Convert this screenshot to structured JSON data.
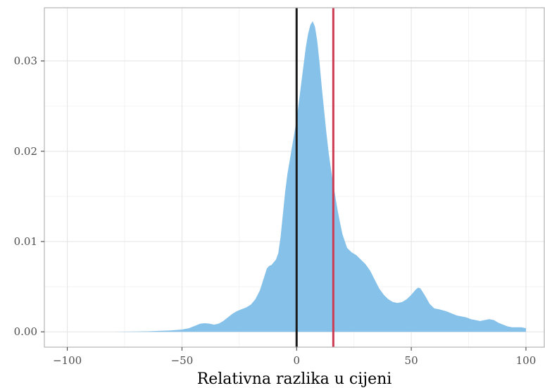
{
  "chart_data": {
    "type": "area",
    "title": "",
    "xlabel": "Relativna razlika u cijeni",
    "ylabel": "",
    "xlim": [
      -110,
      108
    ],
    "ylim": [
      -0.0017,
      0.0359
    ],
    "x_ticks": [
      -100,
      -50,
      0,
      50,
      100
    ],
    "x_tick_labels": [
      "−100",
      "−50",
      "0",
      "50",
      "100"
    ],
    "y_ticks": [
      0.0,
      0.01,
      0.02,
      0.03
    ],
    "y_tick_labels": [
      "0.00",
      "0.01",
      "0.02",
      "0.03"
    ],
    "grid": true,
    "legend": "none",
    "series": [
      {
        "x": [
          -100,
          -90,
          -80,
          -75,
          -70,
          -65,
          -60,
          -55,
          -50,
          -47,
          -44,
          -42,
          -40,
          -38,
          -36,
          -34,
          -32,
          -30,
          -28,
          -26,
          -24,
          -22,
          -20,
          -18,
          -16,
          -14,
          -13,
          -12,
          -11,
          -10,
          -9,
          -8,
          -7,
          -6,
          -5,
          -4,
          -3,
          -2,
          -1,
          0,
          1,
          2,
          3,
          4,
          5,
          6,
          7,
          8,
          9,
          10,
          11,
          12,
          13,
          14,
          15,
          16,
          17,
          18,
          19,
          20,
          22,
          24,
          26,
          28,
          30,
          32,
          34,
          36,
          38,
          40,
          42,
          44,
          46,
          48,
          50,
          52,
          53,
          54,
          56,
          58,
          60,
          62,
          65,
          68,
          70,
          72,
          74,
          76,
          78,
          80,
          82,
          84,
          86,
          88,
          90,
          92,
          94,
          96,
          98,
          100
        ],
        "y": [
          0.0,
          0.0,
          0.0,
          2e-05,
          4e-05,
          6e-05,
          0.0001,
          0.00015,
          0.00025,
          0.0004,
          0.0007,
          0.0009,
          0.00095,
          0.0009,
          0.0008,
          0.0009,
          0.0012,
          0.0016,
          0.002,
          0.0023,
          0.0025,
          0.0027,
          0.003,
          0.0036,
          0.0046,
          0.0062,
          0.007,
          0.0073,
          0.0074,
          0.0077,
          0.008,
          0.0087,
          0.0105,
          0.013,
          0.0155,
          0.0175,
          0.019,
          0.0205,
          0.022,
          0.0235,
          0.0255,
          0.0275,
          0.0295,
          0.0315,
          0.033,
          0.034,
          0.0344,
          0.0338,
          0.0322,
          0.0298,
          0.027,
          0.0245,
          0.022,
          0.0198,
          0.018,
          0.0163,
          0.0148,
          0.0133,
          0.012,
          0.0108,
          0.0093,
          0.0088,
          0.0085,
          0.008,
          0.0075,
          0.0068,
          0.0058,
          0.0048,
          0.0041,
          0.0036,
          0.0033,
          0.0032,
          0.0033,
          0.0036,
          0.0041,
          0.0047,
          0.0049,
          0.0048,
          0.004,
          0.0031,
          0.0026,
          0.0025,
          0.0023,
          0.002,
          0.0018,
          0.0017,
          0.0016,
          0.0014,
          0.0013,
          0.0012,
          0.0013,
          0.0014,
          0.0013,
          0.001,
          0.0008,
          0.0006,
          0.0005,
          0.0005,
          0.0005,
          0.0004
        ],
        "color": "#85C1E9"
      }
    ],
    "reference_lines": [
      {
        "x": 0,
        "color": "#1a1a1a"
      },
      {
        "x": 16,
        "color": "#CD3C52"
      }
    ]
  }
}
